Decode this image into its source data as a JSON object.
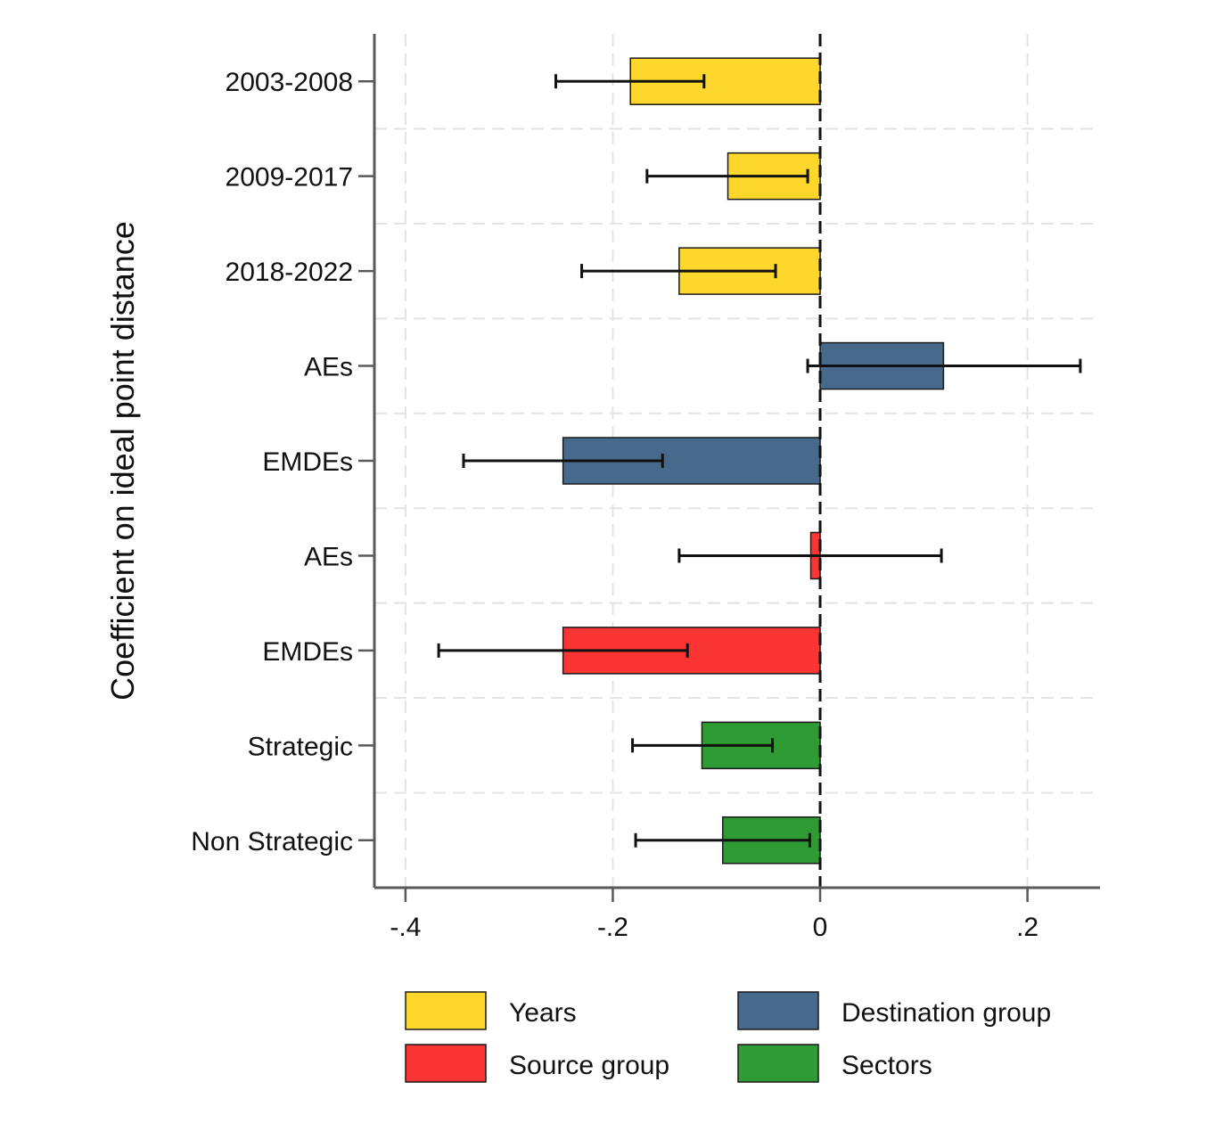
{
  "chart_data": {
    "type": "bar",
    "orientation": "horizontal",
    "ylabel": "Coefficient on ideal point distance",
    "xlabel": "",
    "xlim": [
      -0.43,
      0.27
    ],
    "xticks": [
      -0.4,
      -0.2,
      0,
      0.2
    ],
    "xtick_labels": [
      "-.4",
      "-.2",
      "0",
      ".2"
    ],
    "grid": true,
    "reference_line": 0,
    "legend_placement": "bottom",
    "groups": [
      {
        "name": "Years",
        "color": "#FDD72B"
      },
      {
        "name": "Destination group",
        "color": "#46698C"
      },
      {
        "name": "Source group",
        "color": "#FB3434"
      },
      {
        "name": "Sectors",
        "color": "#2E9B35"
      }
    ],
    "categories": [
      "2003-2008",
      "2009-2017",
      "2018-2022",
      "AEs",
      "EMDEs",
      "AEs",
      "EMDEs",
      "Strategic",
      "Non Strategic"
    ],
    "bars": [
      {
        "label": "2003-2008",
        "group": "Years",
        "value": -0.183,
        "ci": [
          -0.255,
          -0.112
        ]
      },
      {
        "label": "2009-2017",
        "group": "Years",
        "value": -0.089,
        "ci": [
          -0.167,
          -0.012
        ]
      },
      {
        "label": "2018-2022",
        "group": "Years",
        "value": -0.136,
        "ci": [
          -0.23,
          -0.043
        ]
      },
      {
        "label": "AEs",
        "group": "Destination group",
        "value": 0.119,
        "ci": [
          -0.012,
          0.251
        ]
      },
      {
        "label": "EMDEs",
        "group": "Destination group",
        "value": -0.248,
        "ci": [
          -0.344,
          -0.152
        ]
      },
      {
        "label": "AEs",
        "group": "Source group",
        "value": -0.009,
        "ci": [
          -0.136,
          0.117
        ]
      },
      {
        "label": "EMDEs",
        "group": "Source group",
        "value": -0.248,
        "ci": [
          -0.368,
          -0.128
        ]
      },
      {
        "label": "Strategic",
        "group": "Sectors",
        "value": -0.114,
        "ci": [
          -0.181,
          -0.046
        ]
      },
      {
        "label": "Non Strategic",
        "group": "Sectors",
        "value": -0.094,
        "ci": [
          -0.178,
          -0.01
        ]
      }
    ]
  }
}
